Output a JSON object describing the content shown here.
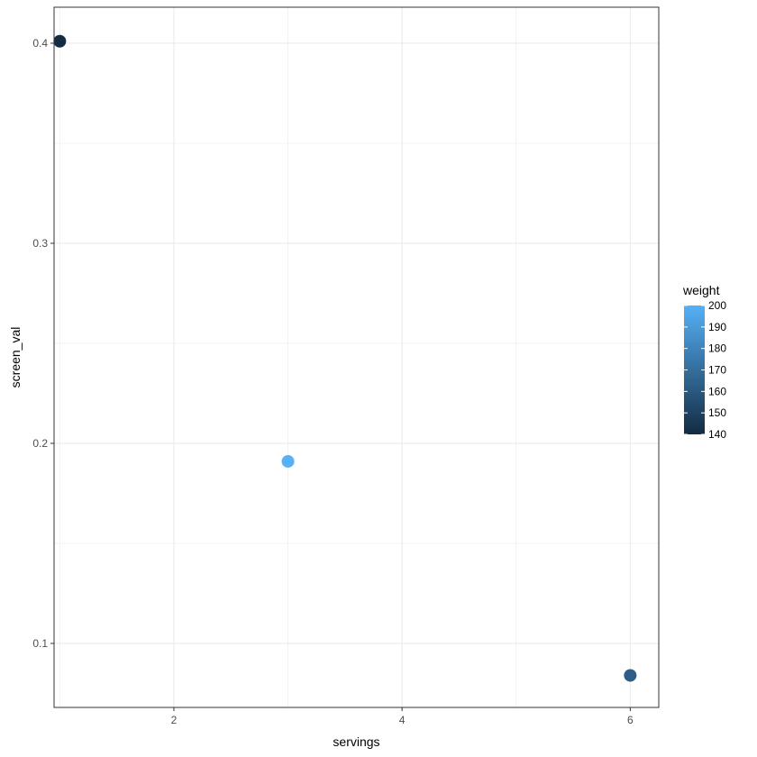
{
  "chart_data": {
    "type": "scatter",
    "xlabel": "servings",
    "ylabel": "screen_val",
    "xlim": [
      0.95,
      6.25
    ],
    "ylim": [
      0.068,
      0.418
    ],
    "x_ticks": [
      2,
      4,
      6
    ],
    "x_tick_labels": [
      "2",
      "4",
      "6"
    ],
    "x_minor_ticks": [
      1,
      3,
      5
    ],
    "y_ticks": [
      0.1,
      0.2,
      0.3,
      0.4
    ],
    "y_tick_labels": [
      "0.1",
      "0.2",
      "0.3",
      "0.4"
    ],
    "y_minor_ticks": [
      0.15,
      0.25,
      0.35
    ],
    "grid": true,
    "points": [
      {
        "x": 1,
        "y": 0.401,
        "weight": 140
      },
      {
        "x": 3,
        "y": 0.191,
        "weight": 200
      },
      {
        "x": 6,
        "y": 0.084,
        "weight": 163
      }
    ],
    "color_scale": {
      "title": "weight",
      "min": 140,
      "max": 200,
      "low_color": "#132B43",
      "high_color": "#56B1F7",
      "breaks": [
        140,
        150,
        160,
        170,
        180,
        190,
        200
      ],
      "break_labels": [
        "140",
        "150",
        "160",
        "170",
        "180",
        "190",
        "200"
      ]
    },
    "legend_position": "right"
  }
}
